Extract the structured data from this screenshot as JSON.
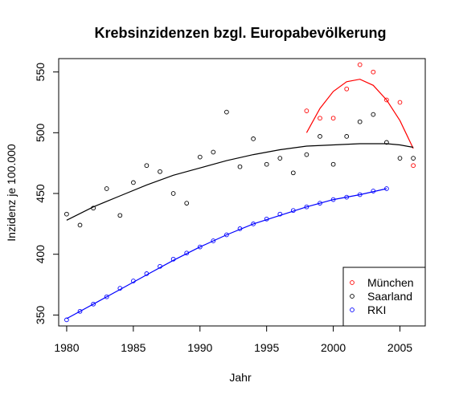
{
  "chart_data": {
    "type": "scatter",
    "title": "Krebsinzidenzen bzgl. Europabevölkerung",
    "xlabel": "Jahr",
    "ylabel": "Inzidenz je 100.000",
    "xlim": [
      1979.4,
      2006.9
    ],
    "ylim": [
      341,
      561
    ],
    "x_ticks": [
      1980,
      1985,
      1990,
      1995,
      2000,
      2005
    ],
    "y_ticks": [
      350,
      400,
      450,
      500,
      550
    ],
    "grid": false,
    "legend_position": "bottom-right",
    "series": [
      {
        "name": "München",
        "color": "#ff0000",
        "marker": "circle-open",
        "points": [
          [
            1998,
            518
          ],
          [
            1999,
            512
          ],
          [
            2000,
            512
          ],
          [
            2001,
            536
          ],
          [
            2002,
            556
          ],
          [
            2003,
            550
          ],
          [
            2004,
            527
          ],
          [
            2005,
            525
          ],
          [
            2006,
            473
          ]
        ],
        "fit": [
          [
            1998,
            500
          ],
          [
            1999,
            520
          ],
          [
            2000,
            534
          ],
          [
            2001,
            542
          ],
          [
            2002,
            544
          ],
          [
            2003,
            539
          ],
          [
            2004,
            527
          ],
          [
            2005,
            510
          ],
          [
            2006,
            487
          ]
        ]
      },
      {
        "name": "Saarland",
        "color": "#000000",
        "marker": "circle-open",
        "points": [
          [
            1980,
            433
          ],
          [
            1981,
            424
          ],
          [
            1982,
            438
          ],
          [
            1983,
            454
          ],
          [
            1984,
            432
          ],
          [
            1985,
            459
          ],
          [
            1986,
            473
          ],
          [
            1987,
            468
          ],
          [
            1988,
            450
          ],
          [
            1989,
            442
          ],
          [
            1990,
            480
          ],
          [
            1991,
            484
          ],
          [
            1992,
            517
          ],
          [
            1993,
            472
          ],
          [
            1994,
            495
          ],
          [
            1995,
            474
          ],
          [
            1996,
            479
          ],
          [
            1997,
            467
          ],
          [
            1998,
            482
          ],
          [
            1999,
            497
          ],
          [
            2000,
            474
          ],
          [
            2001,
            497
          ],
          [
            2002,
            509
          ],
          [
            2003,
            515
          ],
          [
            2004,
            492
          ],
          [
            2005,
            479
          ],
          [
            2006,
            479
          ]
        ],
        "fit": [
          [
            1980,
            428
          ],
          [
            1982,
            439
          ],
          [
            1984,
            448
          ],
          [
            1986,
            457
          ],
          [
            1988,
            465
          ],
          [
            1990,
            471
          ],
          [
            1992,
            477
          ],
          [
            1994,
            482
          ],
          [
            1996,
            486
          ],
          [
            1998,
            489
          ],
          [
            2000,
            490
          ],
          [
            2002,
            491
          ],
          [
            2004,
            491
          ],
          [
            2005,
            490
          ],
          [
            2006,
            488
          ]
        ]
      },
      {
        "name": "RKI",
        "color": "#0000ff",
        "marker": "circle-open",
        "points": [
          [
            1980,
            346
          ],
          [
            1981,
            353
          ],
          [
            1982,
            359
          ],
          [
            1983,
            365
          ],
          [
            1984,
            372
          ],
          [
            1985,
            378
          ],
          [
            1986,
            384
          ],
          [
            1987,
            390
          ],
          [
            1988,
            396
          ],
          [
            1989,
            401
          ],
          [
            1990,
            406
          ],
          [
            1991,
            411
          ],
          [
            1992,
            416
          ],
          [
            1993,
            421
          ],
          [
            1994,
            425
          ],
          [
            1995,
            429
          ],
          [
            1996,
            433
          ],
          [
            1997,
            436
          ],
          [
            1998,
            439
          ],
          [
            1999,
            442
          ],
          [
            2000,
            445
          ],
          [
            2001,
            447
          ],
          [
            2002,
            449
          ],
          [
            2003,
            452
          ],
          [
            2004,
            454
          ]
        ],
        "fit": [
          [
            1980,
            347
          ],
          [
            1982,
            359
          ],
          [
            1984,
            371
          ],
          [
            1986,
            383
          ],
          [
            1988,
            395
          ],
          [
            1990,
            406
          ],
          [
            1992,
            416
          ],
          [
            1994,
            425
          ],
          [
            1996,
            432
          ],
          [
            1998,
            439
          ],
          [
            2000,
            445
          ],
          [
            2002,
            449
          ],
          [
            2004,
            454
          ]
        ]
      }
    ]
  }
}
